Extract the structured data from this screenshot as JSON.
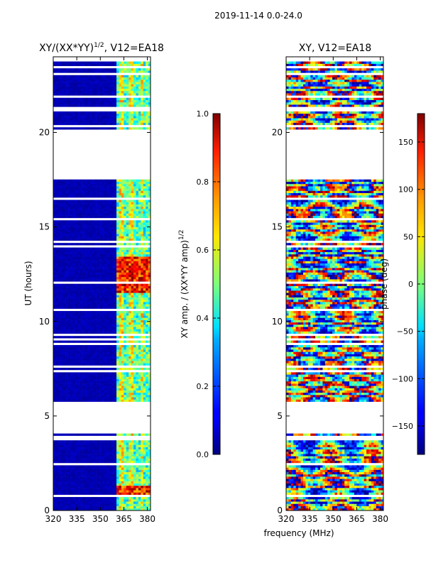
{
  "figure_title": "2019-11-14 0.0-24.0",
  "panels": [
    {
      "title": "XY/(XX*YY)",
      "title_sup": "1/2",
      "title_suffix": ", V12=EA18"
    },
    {
      "title": "XY, V12=EA18"
    }
  ],
  "xlabel": "frequency (MHz)",
  "ylabel": "UT (hours)",
  "colorbars": [
    {
      "label": "XY amp. / (XX*YY amp)",
      "label_sup": "1/2",
      "ticks": [
        "0.0",
        "0.2",
        "0.4",
        "0.6",
        "0.8",
        "1.0"
      ],
      "values": [
        0.0,
        0.2,
        0.4,
        0.6,
        0.8,
        1.0
      ],
      "range": [
        0.0,
        1.0
      ],
      "cmap": "jet"
    },
    {
      "label": "phase (deg)",
      "ticks": [
        "−150",
        "−100",
        "−50",
        "0",
        "50",
        "100",
        "150"
      ],
      "values": [
        -150,
        -100,
        -50,
        0,
        50,
        100,
        150
      ],
      "range": [
        -180,
        180
      ],
      "cmap": "jet"
    }
  ],
  "chart_data": [
    {
      "type": "heatmap",
      "title": "XY/(XX*YY)^1/2, V12=EA18",
      "xlabel": "",
      "ylabel": "UT (hours)",
      "xlim": [
        320,
        382
      ],
      "ylim": [
        0,
        24
      ],
      "xticks": [
        320,
        335,
        350,
        365,
        380
      ],
      "xtick_labels": [
        "320",
        "335",
        "350",
        "365",
        "380"
      ],
      "yticks": [
        0,
        5,
        10,
        15,
        20
      ],
      "ytick_labels": [
        "0",
        "5",
        "10",
        "15",
        "20"
      ],
      "value_range": [
        0.0,
        1.0
      ],
      "data_gaps_hours": [
        [
          4.1,
          5.7
        ],
        [
          17.5,
          20.1
        ],
        [
          21.1,
          21.4
        ]
      ],
      "description_values": {
        "low_freq_band_amp": 0.05,
        "high_freq_band_amp_max": 0.95
      }
    },
    {
      "type": "heatmap",
      "title": "XY, V12=EA18",
      "xlabel": "frequency (MHz)",
      "ylabel": "",
      "xlim": [
        320,
        382
      ],
      "ylim": [
        0,
        24
      ],
      "xticks": [
        320,
        335,
        350,
        365,
        380
      ],
      "xtick_labels": [
        "320",
        "335",
        "350",
        "365",
        "380"
      ],
      "yticks": [
        0,
        5,
        10,
        15,
        20
      ],
      "ytick_labels": [
        "0",
        "5",
        "10",
        "15",
        "20"
      ],
      "value_range": [
        -180,
        180
      ],
      "data_gaps_hours": [
        [
          4.1,
          5.7
        ],
        [
          17.5,
          20.1
        ],
        [
          21.1,
          21.4
        ]
      ]
    }
  ]
}
